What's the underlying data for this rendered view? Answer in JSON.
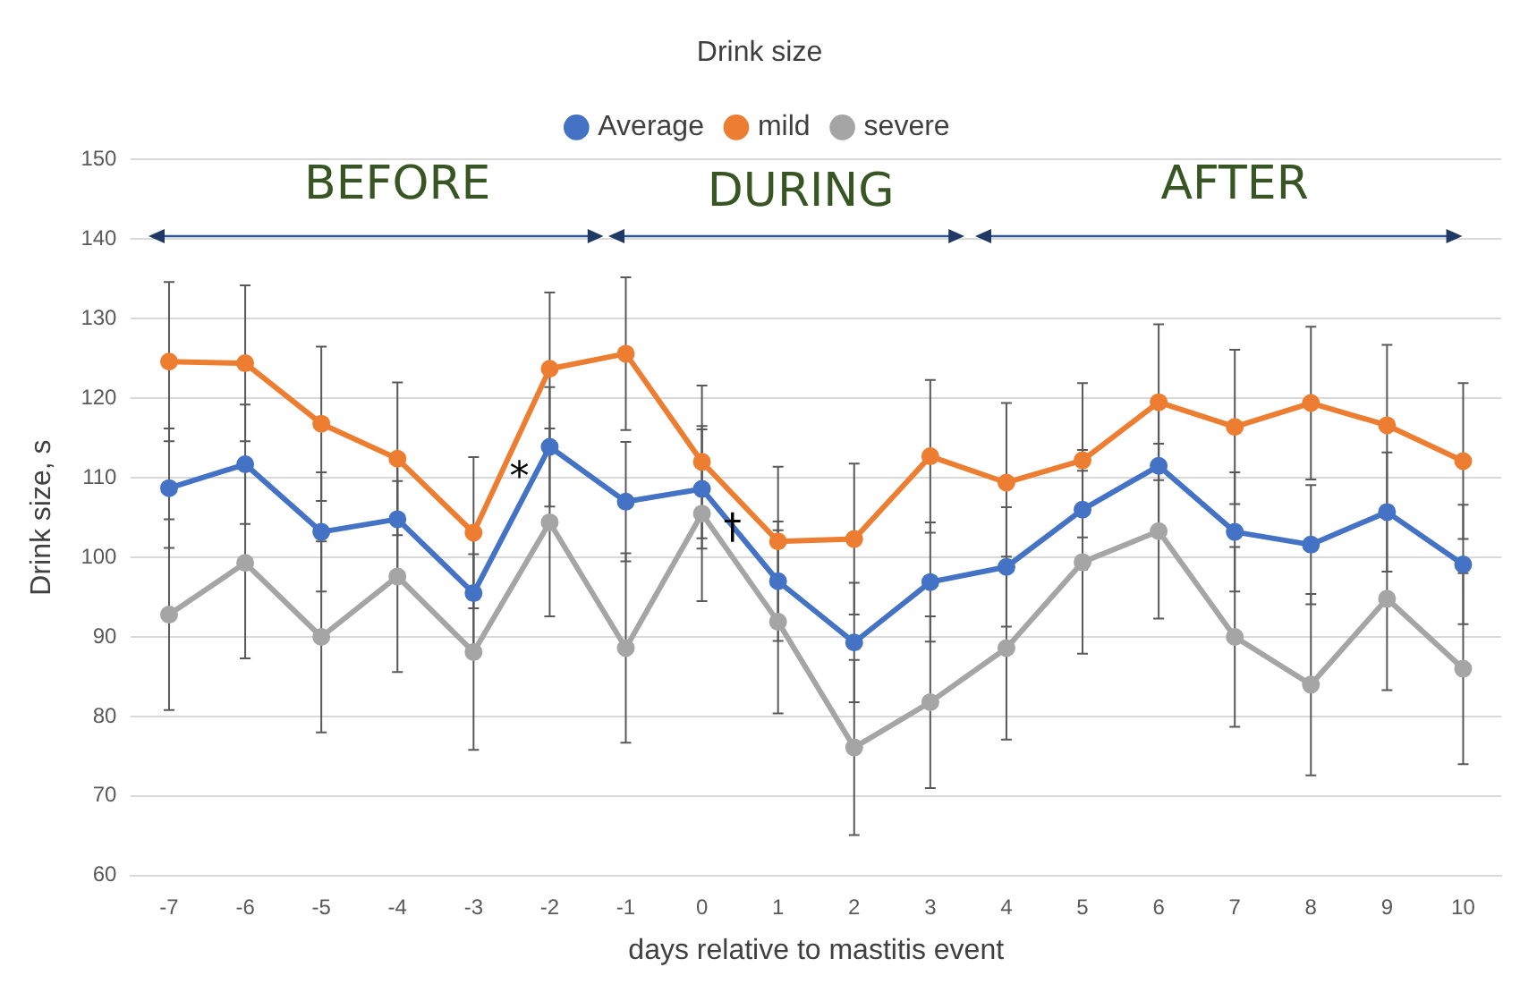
{
  "chart_data": {
    "type": "line",
    "title": "Drink size",
    "xlabel": "days relative to mastitis event",
    "ylabel": "Drink size, s",
    "categories": [
      "-7",
      "-6",
      "-5",
      "-4",
      "-3",
      "-2",
      "-1",
      "0",
      "1",
      "2",
      "3",
      "4",
      "5",
      "6",
      "7",
      "8",
      "9",
      "10"
    ],
    "series": [
      {
        "name": "Average",
        "color": "#4472c4",
        "values": [
          108.7,
          111.7,
          103.2,
          104.8,
          95.5,
          113.9,
          107,
          108.6,
          97,
          89.3,
          96.9,
          98.8,
          106,
          111.5,
          103.2,
          101.6,
          105.7,
          99.1
        ],
        "errors": [
          7.5,
          7.5,
          7.5,
          7.5,
          7.5,
          7.5,
          7.5,
          7.5,
          7.5,
          7.5,
          7.5,
          7.5,
          7.5,
          7.5,
          7.5,
          7.5,
          7.5,
          7.5
        ]
      },
      {
        "name": "mild",
        "color": "#ed7d31",
        "values": [
          124.6,
          124.4,
          116.8,
          112.4,
          103.1,
          123.7,
          125.6,
          112,
          102,
          102.3,
          112.7,
          109.4,
          112.2,
          119.5,
          116.4,
          119.4,
          116.6,
          112.1
        ],
        "errors": [
          10,
          9.8,
          9.7,
          9.6,
          9.5,
          9.6,
          9.6,
          9.6,
          9.4,
          9.5,
          9.6,
          10,
          9.7,
          9.8,
          9.7,
          9.6,
          10.1,
          9.8
        ]
      },
      {
        "name": "severe",
        "color": "#a5a5a5",
        "values": [
          92.8,
          99.3,
          90,
          97.6,
          88.1,
          104.4,
          88.6,
          105.5,
          91.9,
          76.1,
          81.8,
          88.6,
          99.4,
          103.3,
          90,
          84,
          94.8,
          86
        ],
        "errors": [
          12,
          12,
          12,
          12,
          12.3,
          11.8,
          11.9,
          11,
          11.5,
          11,
          10.8,
          11.5,
          11.5,
          11,
          11.3,
          11.4,
          11.5,
          12
        ]
      }
    ],
    "ylim": [
      60,
      150
    ],
    "yticks": [
      60,
      70,
      80,
      90,
      100,
      110,
      120,
      130,
      140,
      150
    ],
    "grid": "y",
    "legend": "top",
    "marker": "circle",
    "line_style": "solid",
    "annotations": [
      "BEFORE",
      "DURING",
      "AFTER",
      "*",
      "†"
    ]
  }
}
